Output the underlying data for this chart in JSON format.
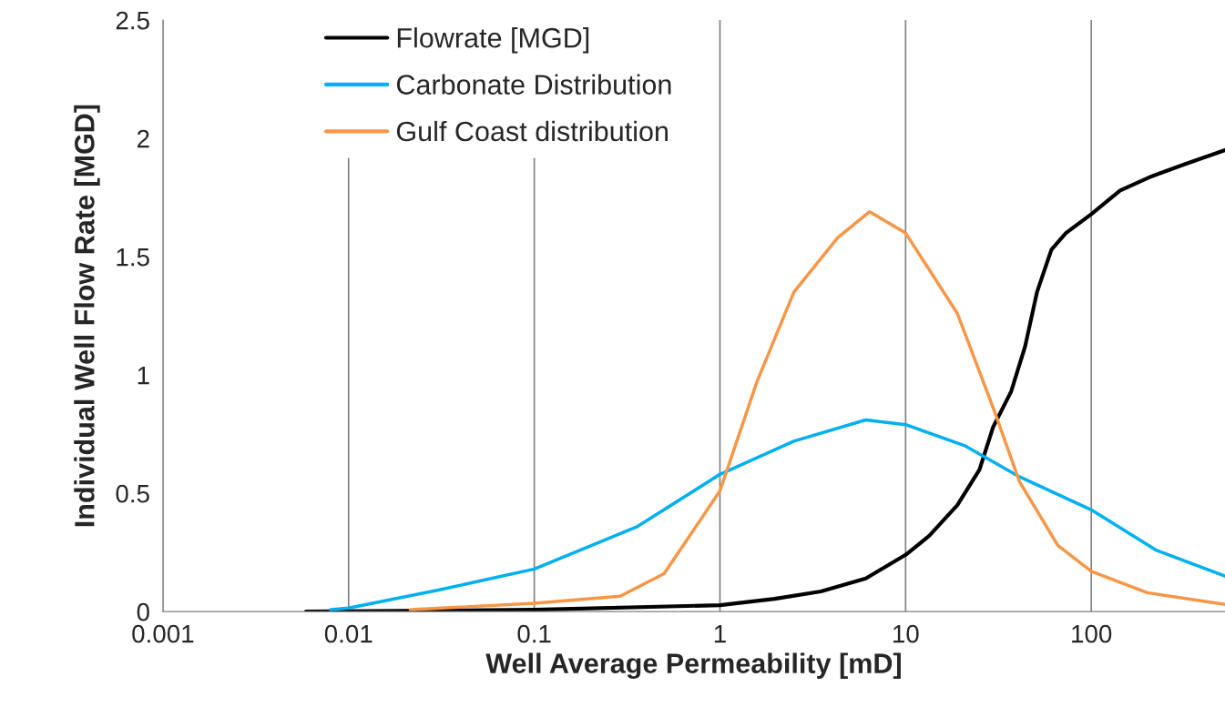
{
  "chart_data": {
    "type": "line",
    "xlabel": "Well Average Permeability [mD]",
    "ylabel": "Individual Well Flow Rate [MGD]",
    "log": "x",
    "xlim": [
      0.001,
      525
    ],
    "xticks": [
      0.001,
      0.01,
      0.1,
      1,
      10,
      100
    ],
    "ylim": [
      0,
      2.5
    ],
    "yticks": [
      0,
      0.5,
      1,
      1.5,
      2,
      2.5
    ],
    "grid": "x",
    "legend": "top left",
    "series": [
      {
        "name": "Flowrate [MGD]",
        "color": "#000000",
        "x": [
          0.0059,
          0.1,
          1,
          1.97,
          3.5,
          6.1,
          10,
          13.4,
          19,
          25,
          29.6,
          37,
          44,
          51,
          61,
          73,
          100,
          143,
          212,
          316,
          525
        ],
        "values": [
          0,
          0.008,
          0.027,
          0.054,
          0.085,
          0.14,
          0.24,
          0.32,
          0.45,
          0.6,
          0.78,
          0.93,
          1.12,
          1.35,
          1.53,
          1.6,
          1.68,
          1.78,
          1.84,
          1.89,
          1.95
        ]
      },
      {
        "name": "Carbonate Distribution",
        "color": "#00b0f0",
        "x": [
          0.008,
          0.01,
          0.03,
          0.1,
          0.36,
          1,
          2.5,
          6.1,
          10,
          21,
          41,
          100,
          223,
          525
        ],
        "values": [
          0.008,
          0.015,
          0.09,
          0.18,
          0.36,
          0.58,
          0.72,
          0.81,
          0.79,
          0.7,
          0.57,
          0.43,
          0.26,
          0.15
        ]
      },
      {
        "name": "Gulf Coast distribution",
        "color": "#f79646",
        "x": [
          0.0215,
          0.1,
          0.29,
          0.5,
          1,
          1.58,
          2.5,
          4.3,
          6.4,
          10,
          19,
          30,
          41,
          66,
          100,
          200,
          525
        ],
        "values": [
          0.008,
          0.035,
          0.065,
          0.16,
          0.51,
          0.97,
          1.35,
          1.58,
          1.69,
          1.6,
          1.26,
          0.85,
          0.55,
          0.28,
          0.17,
          0.08,
          0.03
        ]
      }
    ]
  }
}
